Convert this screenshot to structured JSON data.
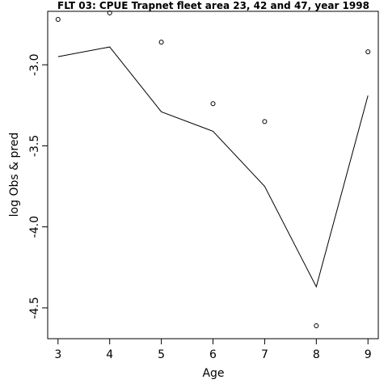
{
  "chart_data": {
    "type": "line",
    "title": "FLT 03: CPUE Trapnet fleet area 23, 42 and 47, year 1998",
    "xlabel": "Age",
    "ylabel": "log Obs & pred",
    "xlim": [
      2.8,
      9.2
    ],
    "ylim": [
      -4.69,
      -2.67
    ],
    "xticks": [
      3,
      4,
      5,
      6,
      7,
      8,
      9
    ],
    "yticks": [
      -3.0,
      -3.5,
      -4.0,
      -4.5
    ],
    "ytick_labels": [
      "-3.0",
      "-3.5",
      "-4.0",
      "-4.5"
    ],
    "grid": false,
    "series": [
      {
        "style": "points",
        "x": [
          3,
          4,
          5,
          6,
          7,
          8,
          9
        ],
        "y": [
          -2.72,
          -2.68,
          -2.86,
          -3.24,
          -3.35,
          -4.61,
          -2.92
        ]
      },
      {
        "style": "line",
        "x": [
          3,
          4,
          5,
          6,
          7,
          8,
          9
        ],
        "y": [
          -2.95,
          -2.89,
          -3.29,
          -3.41,
          -3.75,
          -4.37,
          -3.19
        ]
      }
    ]
  }
}
